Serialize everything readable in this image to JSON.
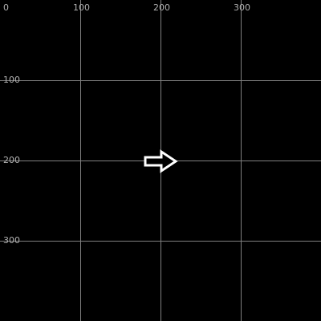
{
  "colors": {
    "background": "#000000",
    "grid_line": "#808080",
    "tick_label": "#b0b0b0",
    "cursor_fill": "#000000",
    "cursor_outline": "#ffffff"
  },
  "axes": {
    "origin_label": "0",
    "x_ticks": [
      {
        "label": "100"
      },
      {
        "label": "200"
      },
      {
        "label": "300"
      }
    ],
    "y_ticks": [
      {
        "label": "100"
      },
      {
        "label": "200"
      },
      {
        "label": "300"
      }
    ]
  },
  "cursor": {
    "icon": "right-arrow-cursor-icon"
  }
}
